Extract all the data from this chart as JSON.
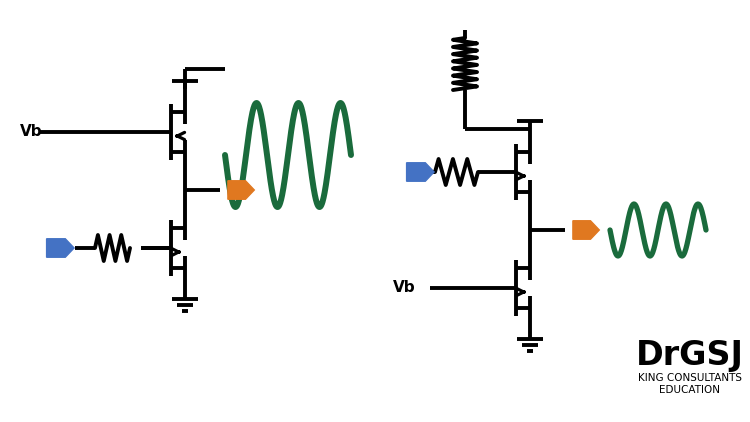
{
  "bg_color": "#ffffff",
  "line_color": "#000000",
  "green_color": "#1a6b3c",
  "orange_color": "#e07820",
  "blue_color": "#4472c4",
  "vb_color": "#000000",
  "lw": 2.8,
  "fig_width": 7.5,
  "fig_height": 4.22,
  "drgsj_text": "DrGSJ",
  "sub_text1": "KING CONSULTANTS",
  "sub_text2": "EDUCATION"
}
